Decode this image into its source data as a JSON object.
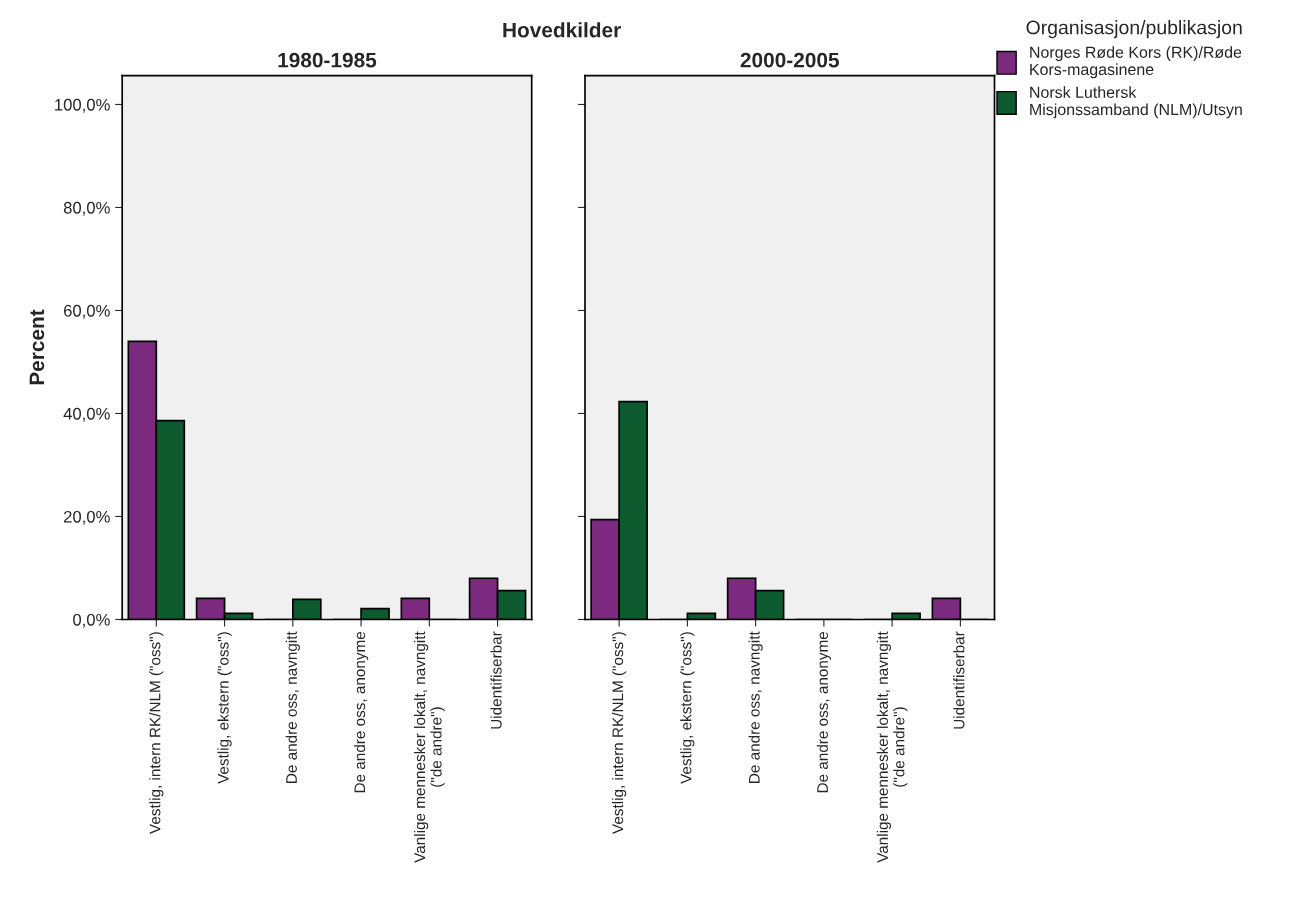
{
  "chart_data": [
    {
      "type": "bar",
      "title": "1980-1985",
      "ylabel": "Percent",
      "annotations": [
        "Hovedkilder"
      ],
      "categories": [
        "Vestlig, intern RK/NLM (\"oss\")",
        "Vestlig, ekstern (\"oss\")",
        "De andre oss, navngitt",
        "De andre oss, anonyme",
        "Vanlige mennesker lokalt, navngitt\n(\"de andre\")",
        "Uidentifiserbar"
      ],
      "series": [
        {
          "name": "Norges Røde Kors (RK)/Røde\nKors-magasinene",
          "color": "#7b2a7f",
          "values": [
            54.0,
            4.1,
            0,
            0,
            4.1,
            8.0
          ]
        },
        {
          "name": "Norsk Luthersk\nMisjonssamband (NLM)/Utsyn",
          "color": "#0d5a2f",
          "values": [
            38.6,
            1.2,
            3.9,
            2.1,
            0,
            5.6
          ]
        }
      ],
      "ylim": [
        0,
        105.6
      ],
      "yticks": [
        {
          "value": 0,
          "label": "0,0%"
        },
        {
          "value": 20,
          "label": "20,0%"
        },
        {
          "value": 40,
          "label": "40,0%"
        },
        {
          "value": 60,
          "label": "60,0%"
        },
        {
          "value": 80,
          "label": "80,0%"
        },
        {
          "value": 100,
          "label": "100,0%"
        }
      ],
      "grid": false,
      "legend": "right",
      "legend_title": "Organisasjon/publikasjon"
    },
    {
      "type": "bar",
      "title": "2000-2005",
      "categories": [
        "Vestlig, intern RK/NLM (\"oss\")",
        "Vestlig, ekstern (\"oss\")",
        "De andre oss, navngitt",
        "De andre oss, anonyme",
        "Vanlige mennesker lokalt, navngitt\n(\"de andre\")",
        "Uidentifiserbar"
      ],
      "series": [
        {
          "color": "#7b2a7f",
          "values": [
            19.4,
            0,
            8.0,
            0,
            0,
            4.1
          ]
        },
        {
          "color": "#0d5a2f",
          "values": [
            42.3,
            1.2,
            5.6,
            0,
            1.2,
            0
          ]
        }
      ],
      "ylim": [
        0,
        105.6
      ],
      "tick_labels": "x",
      "yticks": [
        {
          "value": 0,
          "label": null
        },
        {
          "value": 20,
          "label": null
        },
        {
          "value": 40,
          "label": null
        },
        {
          "value": 60,
          "label": null
        },
        {
          "value": 80,
          "label": null
        },
        {
          "value": 100,
          "label": null
        }
      ],
      "grid": false
    }
  ]
}
